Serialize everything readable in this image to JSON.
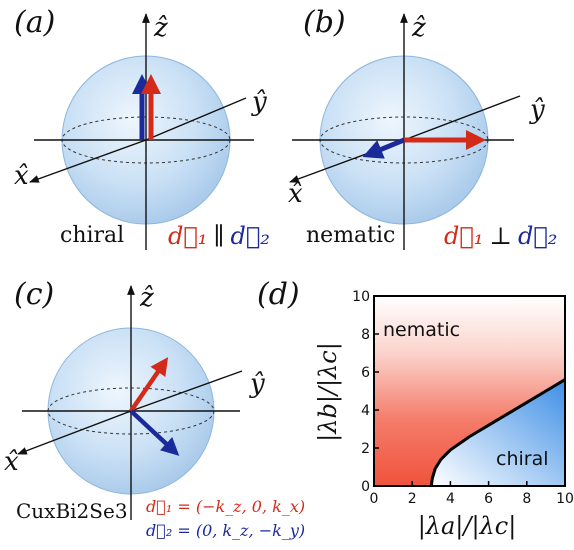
{
  "panels": {
    "a": {
      "tag": "(a)",
      "axes": {
        "z": "ẑ",
        "y": "ŷ",
        "x": "x̂"
      },
      "name": "chiral",
      "relation": {
        "d1": "d⃗₁",
        "op": "∥",
        "d2": "d⃗₂"
      }
    },
    "b": {
      "tag": "(b)",
      "axes": {
        "z": "ẑ",
        "y": "ŷ",
        "x": "x̂"
      },
      "name": "nematic",
      "relation": {
        "d1": "d⃗₁",
        "op": "⊥",
        "d2": "d⃗₂"
      }
    },
    "c": {
      "tag": "(c)",
      "axes": {
        "z": "ẑ",
        "y": "ŷ",
        "x": "x̂"
      },
      "material": "CuxBi2Se3",
      "eq1": "d⃗₁ = (−k_z, 0, k_x)",
      "eq2": "d⃗₂ = (0, k_z, −k_y)"
    },
    "d": {
      "tag": "(d)",
      "region_top": "nematic",
      "region_bottom": "chiral"
    }
  },
  "colors": {
    "red": "#d42a1a",
    "blue": "#1a2a9a",
    "sphere": "#c9e0f5",
    "nematic_fill": "#f05a45",
    "chiral_fill": "#4a9be8"
  },
  "chart_data": {
    "type": "area",
    "xlabel": "|λa|/|λc|",
    "ylabel": "|λb|/|λc|",
    "xlim": [
      0,
      10
    ],
    "ylim": [
      0,
      10
    ],
    "xticks": [
      0,
      2,
      4,
      6,
      8,
      10
    ],
    "yticks": [
      0,
      2,
      4,
      6,
      8,
      10
    ],
    "boundary": {
      "x": [
        3.0,
        3.05,
        3.2,
        3.5,
        4.0,
        5.0,
        6.0,
        7.0,
        8.0,
        9.0,
        10.0
      ],
      "y": [
        0.0,
        0.4,
        0.9,
        1.4,
        1.9,
        2.6,
        3.2,
        3.8,
        4.4,
        5.0,
        5.6
      ]
    },
    "regions": [
      "nematic",
      "chiral"
    ],
    "grid": false
  }
}
